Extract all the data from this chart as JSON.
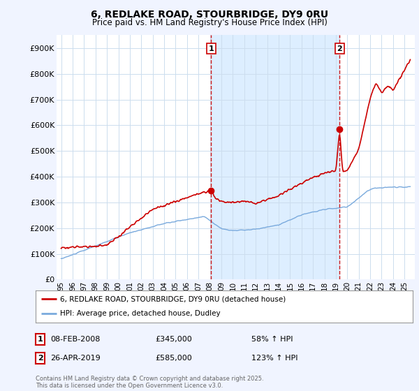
{
  "title": "6, REDLAKE ROAD, STOURBRIDGE, DY9 0RU",
  "subtitle": "Price paid vs. HM Land Registry's House Price Index (HPI)",
  "bg_color": "#f0f4ff",
  "plot_bg_color": "#ffffff",
  "shade_color": "#ddeeff",
  "grid_color": "#ccddee",
  "red_color": "#cc0000",
  "blue_color": "#7aaadd",
  "dashed_color": "#cc0000",
  "ylim": [
    0,
    950000
  ],
  "yticks": [
    0,
    100000,
    200000,
    300000,
    400000,
    500000,
    600000,
    700000,
    800000,
    900000
  ],
  "ytick_labels": [
    "£0",
    "£100K",
    "£200K",
    "£300K",
    "£400K",
    "£500K",
    "£600K",
    "£700K",
    "£800K",
    "£900K"
  ],
  "sale1_x": 2008.1,
  "sale1_y": 345000,
  "sale1_label": "1",
  "sale1_date": "08-FEB-2008",
  "sale1_price": "£345,000",
  "sale1_hpi": "58% ↑ HPI",
  "sale2_x": 2019.32,
  "sale2_y": 585000,
  "sale2_label": "2",
  "sale2_date": "26-APR-2019",
  "sale2_price": "£585,000",
  "sale2_hpi": "123% ↑ HPI",
  "legend_line1": "6, REDLAKE ROAD, STOURBRIDGE, DY9 0RU (detached house)",
  "legend_line2": "HPI: Average price, detached house, Dudley",
  "footer": "Contains HM Land Registry data © Crown copyright and database right 2025.\nThis data is licensed under the Open Government Licence v3.0.",
  "xmin": 1994.6,
  "xmax": 2025.9
}
